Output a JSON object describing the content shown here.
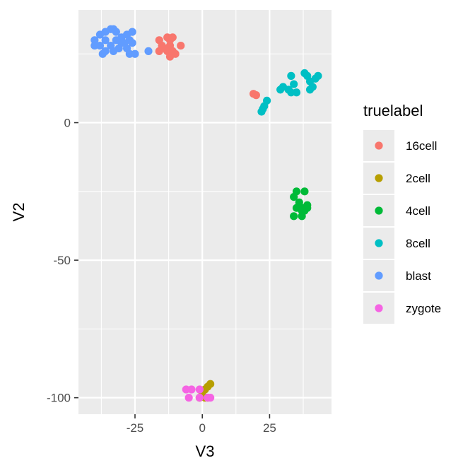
{
  "chart_data": {
    "type": "scatter",
    "xlabel": "V3",
    "ylabel": "V2",
    "xlim": [
      -46,
      48
    ],
    "ylim": [
      -106,
      41
    ],
    "x_ticks": [
      -25,
      0,
      25
    ],
    "x_tick_labels": [
      "-25",
      "0",
      "25"
    ],
    "y_ticks": [
      -100,
      -50,
      0
    ],
    "y_tick_labels": [
      "-100",
      "-50",
      "0"
    ],
    "grid": true,
    "legend_position": "right",
    "legend_title": "truelabel",
    "panel_background": "#ebebeb",
    "series": [
      {
        "name": "16cell",
        "color": "#f8766d",
        "points": [
          [
            -16,
            30
          ],
          [
            -13,
            31
          ],
          [
            -12,
            30
          ],
          [
            -11,
            31
          ],
          [
            -15,
            28
          ],
          [
            -14,
            27
          ],
          [
            -12,
            28
          ],
          [
            -8,
            28
          ],
          [
            -16,
            26
          ],
          [
            -13,
            26
          ],
          [
            -11,
            26
          ],
          [
            -12,
            24
          ],
          [
            -10,
            25
          ],
          [
            19,
            10.5
          ],
          [
            20,
            10
          ]
        ]
      },
      {
        "name": "2cell",
        "color": "#b79f00",
        "points": [
          [
            3,
            -95
          ],
          [
            2,
            -96
          ],
          [
            1,
            -97
          ],
          [
            0,
            -98
          ],
          [
            1,
            -100
          ],
          [
            2,
            -100
          ],
          [
            -1,
            -100
          ]
        ]
      },
      {
        "name": "4cell",
        "color": "#00ba38",
        "points": [
          [
            35,
            -25
          ],
          [
            34,
            -27
          ],
          [
            38,
            -25
          ],
          [
            36,
            -29
          ],
          [
            35,
            -31
          ],
          [
            37,
            -31
          ],
          [
            38,
            -32
          ],
          [
            39,
            -31
          ],
          [
            39,
            -30
          ],
          [
            37,
            -32
          ],
          [
            34,
            -34
          ],
          [
            37,
            -34
          ]
        ]
      },
      {
        "name": "8cell",
        "color": "#00bfc4",
        "points": [
          [
            22,
            4
          ],
          [
            22.5,
            5
          ],
          [
            23,
            6
          ],
          [
            24,
            8
          ],
          [
            29,
            12
          ],
          [
            30,
            13
          ],
          [
            32,
            12
          ],
          [
            33,
            11
          ],
          [
            35,
            11
          ],
          [
            33,
            17
          ],
          [
            34,
            14
          ],
          [
            38,
            18
          ],
          [
            39,
            17
          ],
          [
            42,
            16
          ],
          [
            43,
            17
          ],
          [
            40,
            15
          ],
          [
            41,
            13
          ],
          [
            40,
            12
          ]
        ]
      },
      {
        "name": "blast",
        "color": "#619cff",
        "points": [
          [
            -40,
            30
          ],
          [
            -38,
            32
          ],
          [
            -36,
            33
          ],
          [
            -34,
            34
          ],
          [
            -33,
            34
          ],
          [
            -32,
            33
          ],
          [
            -30,
            31
          ],
          [
            -28,
            32
          ],
          [
            -26,
            33
          ],
          [
            -27,
            30
          ],
          [
            -29,
            29
          ],
          [
            -31,
            27
          ],
          [
            -33,
            26
          ],
          [
            -34,
            28
          ],
          [
            -36,
            30
          ],
          [
            -38,
            28
          ],
          [
            -40,
            28
          ],
          [
            -37,
            25
          ],
          [
            -36,
            26
          ],
          [
            -28,
            27
          ],
          [
            -27,
            25
          ],
          [
            -25,
            25
          ],
          [
            -20,
            26
          ],
          [
            -30,
            29
          ],
          [
            -26,
            29
          ],
          [
            -32,
            30
          ]
        ]
      },
      {
        "name": "zygote",
        "color": "#f564e3",
        "points": [
          [
            -6,
            -97
          ],
          [
            -4,
            -97
          ],
          [
            -1,
            -97
          ],
          [
            -5,
            -100
          ],
          [
            -1,
            -100
          ],
          [
            2,
            -100
          ],
          [
            3,
            -100
          ]
        ]
      }
    ]
  }
}
